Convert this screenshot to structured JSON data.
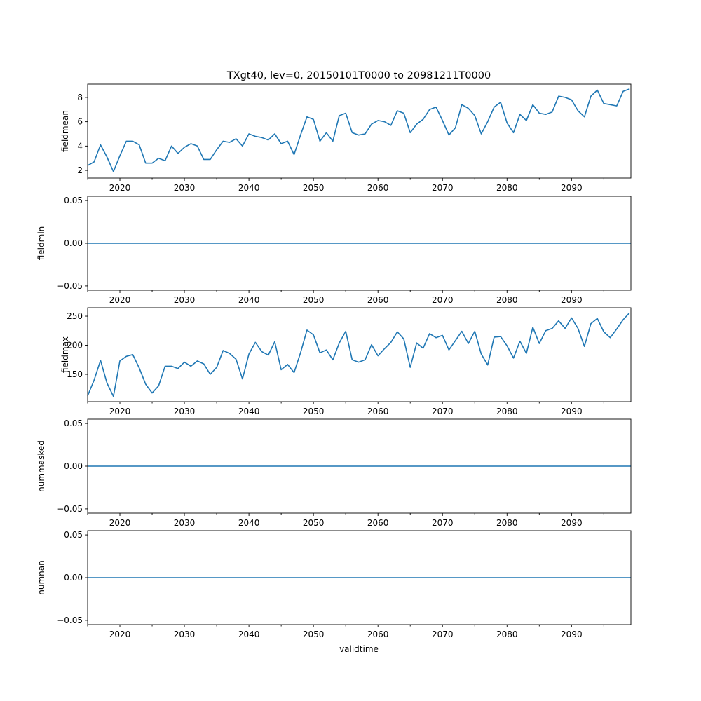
{
  "chart_data": {
    "type": "line",
    "title": "TXgt40, lev=0, 20150101T0000 to 20981211T0000",
    "xlabel": "validtime",
    "xlim": [
      2015,
      2099.2
    ],
    "xticks": [
      2020,
      2030,
      2040,
      2050,
      2060,
      2070,
      2080,
      2090
    ],
    "xtick_labels": [
      "2020",
      "2030",
      "2040",
      "2050",
      "2060",
      "2070",
      "2080",
      "2090"
    ],
    "x_start": 2015,
    "color": "#1f77b4",
    "panels": [
      {
        "ylabel": "fieldmean",
        "ylim": [
          1.37,
          9.09
        ],
        "yticks": [
          2,
          4,
          6,
          8
        ],
        "ytick_labels": [
          "2",
          "4",
          "6",
          "8"
        ],
        "values": [
          2.4,
          2.7,
          4.1,
          3.1,
          1.9,
          3.2,
          4.4,
          4.4,
          4.1,
          2.6,
          2.6,
          3.0,
          2.8,
          4.0,
          3.4,
          3.9,
          4.2,
          4.0,
          2.9,
          2.9,
          3.7,
          4.4,
          4.3,
          4.6,
          4.0,
          5.0,
          4.8,
          4.7,
          4.5,
          5.0,
          4.2,
          4.4,
          3.3,
          4.9,
          6.4,
          6.2,
          4.4,
          5.1,
          4.4,
          6.5,
          6.7,
          5.1,
          4.9,
          5.0,
          5.8,
          6.1,
          6.0,
          5.7,
          6.9,
          6.7,
          5.1,
          5.8,
          6.2,
          7.0,
          7.2,
          6.1,
          4.9,
          5.5,
          7.4,
          7.1,
          6.5,
          5.0,
          6.0,
          7.2,
          7.6,
          5.9,
          5.1,
          6.6,
          6.1,
          7.4,
          6.7,
          6.6,
          6.8,
          8.1,
          8.0,
          7.8,
          6.9,
          6.4,
          8.1,
          8.6,
          7.5,
          7.4,
          7.3,
          8.5,
          8.7
        ]
      },
      {
        "ylabel": "fieldmin",
        "ylim": [
          -0.055,
          0.055
        ],
        "yticks": [
          -0.05,
          0,
          0.05
        ],
        "ytick_labels": [
          "−0.05",
          "0.00",
          "0.05"
        ],
        "constant": 0
      },
      {
        "ylabel": "fieldmax",
        "ylim": [
          103,
          264.5
        ],
        "yticks": [
          150,
          200,
          250
        ],
        "ytick_labels": [
          "150",
          "200",
          "250"
        ],
        "values": [
          113,
          140,
          174,
          135,
          112,
          173,
          181,
          184,
          161,
          133,
          118,
          130,
          164,
          164,
          160,
          171,
          164,
          173,
          168,
          150,
          162,
          191,
          186,
          176,
          142,
          185,
          205,
          189,
          183,
          206,
          158,
          167,
          153,
          187,
          226,
          218,
          187,
          192,
          175,
          204,
          224,
          175,
          171,
          175,
          201,
          182,
          194,
          205,
          223,
          211,
          162,
          204,
          195,
          220,
          213,
          217,
          192,
          208,
          224,
          203,
          224,
          185,
          166,
          214,
          215,
          199,
          178,
          207,
          186,
          231,
          203,
          225,
          229,
          242,
          229,
          247,
          229,
          198,
          237,
          246,
          223,
          213,
          228,
          244,
          256
        ]
      },
      {
        "ylabel": "nummasked",
        "ylim": [
          -0.055,
          0.055
        ],
        "yticks": [
          -0.05,
          0,
          0.05
        ],
        "ytick_labels": [
          "−0.05",
          "0.00",
          "0.05"
        ],
        "constant": 0
      },
      {
        "ylabel": "numnan",
        "ylim": [
          -0.055,
          0.055
        ],
        "yticks": [
          -0.05,
          0,
          0.05
        ],
        "ytick_labels": [
          "−0.05",
          "0.00",
          "0.05"
        ],
        "constant": 0
      }
    ]
  }
}
